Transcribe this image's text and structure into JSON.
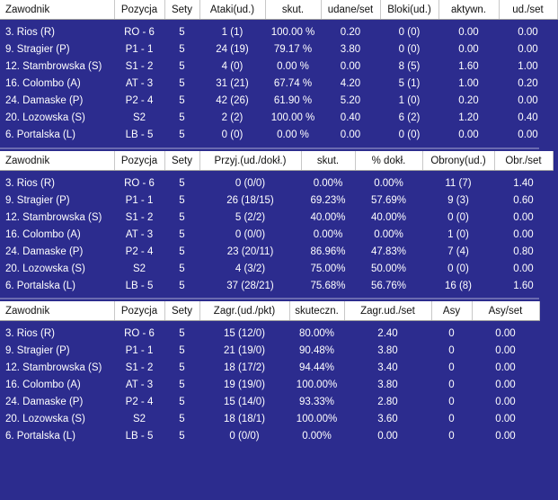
{
  "tables": [
    {
      "name": "attack-block-table",
      "headers": [
        "Zawodnik",
        "Pozycja",
        "Sety",
        "Ataki(ud.)",
        "skut.",
        "udane/set",
        "Bloki(ud.)",
        "aktywn.",
        "ud./set"
      ],
      "rows": [
        [
          "3. Rios (R)",
          "RO - 6",
          "5",
          "1 (1)",
          "100.00 %",
          "0.20",
          "0 (0)",
          "0.00",
          "0.00"
        ],
        [
          "9. Stragier (P)",
          "P1 - 1",
          "5",
          "24 (19)",
          "79.17 %",
          "3.80",
          "0 (0)",
          "0.00",
          "0.00"
        ],
        [
          "12. Stambrowska (S)",
          "S1 - 2",
          "5",
          "4 (0)",
          "0.00 %",
          "0.00",
          "8 (5)",
          "1.60",
          "1.00"
        ],
        [
          "16. Colombo (A)",
          "AT - 3",
          "5",
          "31 (21)",
          "67.74 %",
          "4.20",
          "5 (1)",
          "1.00",
          "0.20"
        ],
        [
          "24. Damaske (P)",
          "P2 - 4",
          "5",
          "42 (26)",
          "61.90 %",
          "5.20",
          "1 (0)",
          "0.20",
          "0.00"
        ],
        [
          "20. Lozowska (S)",
          "S2",
          "5",
          "2 (2)",
          "100.00 %",
          "0.40",
          "6 (2)",
          "1.20",
          "0.40"
        ],
        [
          "6. Portalska (L)",
          "LB - 5",
          "5",
          "0 (0)",
          "0.00 %",
          "0.00",
          "0 (0)",
          "0.00",
          "0.00"
        ]
      ]
    },
    {
      "name": "reception-defense-table",
      "headers": [
        "Zawodnik",
        "Pozycja",
        "Sety",
        "Przyj.(ud./dokł.)",
        "skut.",
        "% dokł.",
        "Obrony(ud.)",
        "Obr./set"
      ],
      "rows": [
        [
          "3. Rios (R)",
          "RO - 6",
          "5",
          "0 (0/0)",
          "0.00%",
          "0.00%",
          "11 (7)",
          "1.40"
        ],
        [
          "9. Stragier (P)",
          "P1 - 1",
          "5",
          "26 (18/15)",
          "69.23%",
          "57.69%",
          "9 (3)",
          "0.60"
        ],
        [
          "12. Stambrowska (S)",
          "S1 - 2",
          "5",
          "5 (2/2)",
          "40.00%",
          "40.00%",
          "0 (0)",
          "0.00"
        ],
        [
          "16. Colombo (A)",
          "AT - 3",
          "5",
          "0 (0/0)",
          "0.00%",
          "0.00%",
          "1 (0)",
          "0.00"
        ],
        [
          "24. Damaske (P)",
          "P2 - 4",
          "5",
          "23 (20/11)",
          "86.96%",
          "47.83%",
          "7 (4)",
          "0.80"
        ],
        [
          "20. Lozowska (S)",
          "S2",
          "5",
          "4 (3/2)",
          "75.00%",
          "50.00%",
          "0 (0)",
          "0.00"
        ],
        [
          "6. Portalska (L)",
          "LB - 5",
          "5",
          "37 (28/21)",
          "75.68%",
          "56.76%",
          "16 (8)",
          "1.60"
        ]
      ]
    },
    {
      "name": "serve-table",
      "headers": [
        "Zawodnik",
        "Pozycja",
        "Sety",
        "Zagr.(ud./pkt)",
        "skuteczn.",
        "Zagr.ud./set",
        "Asy",
        "Asy/set"
      ],
      "rows": [
        [
          "3. Rios (R)",
          "RO - 6",
          "5",
          "15 (12/0)",
          "80.00%",
          "2.40",
          "0",
          "0.00"
        ],
        [
          "9. Stragier (P)",
          "P1 - 1",
          "5",
          "21 (19/0)",
          "90.48%",
          "3.80",
          "0",
          "0.00"
        ],
        [
          "12. Stambrowska (S)",
          "S1 - 2",
          "5",
          "18 (17/2)",
          "94.44%",
          "3.40",
          "0",
          "0.00"
        ],
        [
          "16. Colombo (A)",
          "AT - 3",
          "5",
          "19 (19/0)",
          "100.00%",
          "3.80",
          "0",
          "0.00"
        ],
        [
          "24. Damaske (P)",
          "P2 - 4",
          "5",
          "15 (14/0)",
          "93.33%",
          "2.80",
          "0",
          "0.00"
        ],
        [
          "20. Lozowska (S)",
          "S2",
          "5",
          "18 (18/1)",
          "100.00%",
          "3.60",
          "0",
          "0.00"
        ],
        [
          "6. Portalska (L)",
          "LB - 5",
          "5",
          "0 (0/0)",
          "0.00%",
          "0.00",
          "0",
          "0.00"
        ]
      ]
    }
  ],
  "colors": {
    "body_bg": "#2c2c8e",
    "header_bg": "#ffffff",
    "text": "#ffffff"
  }
}
